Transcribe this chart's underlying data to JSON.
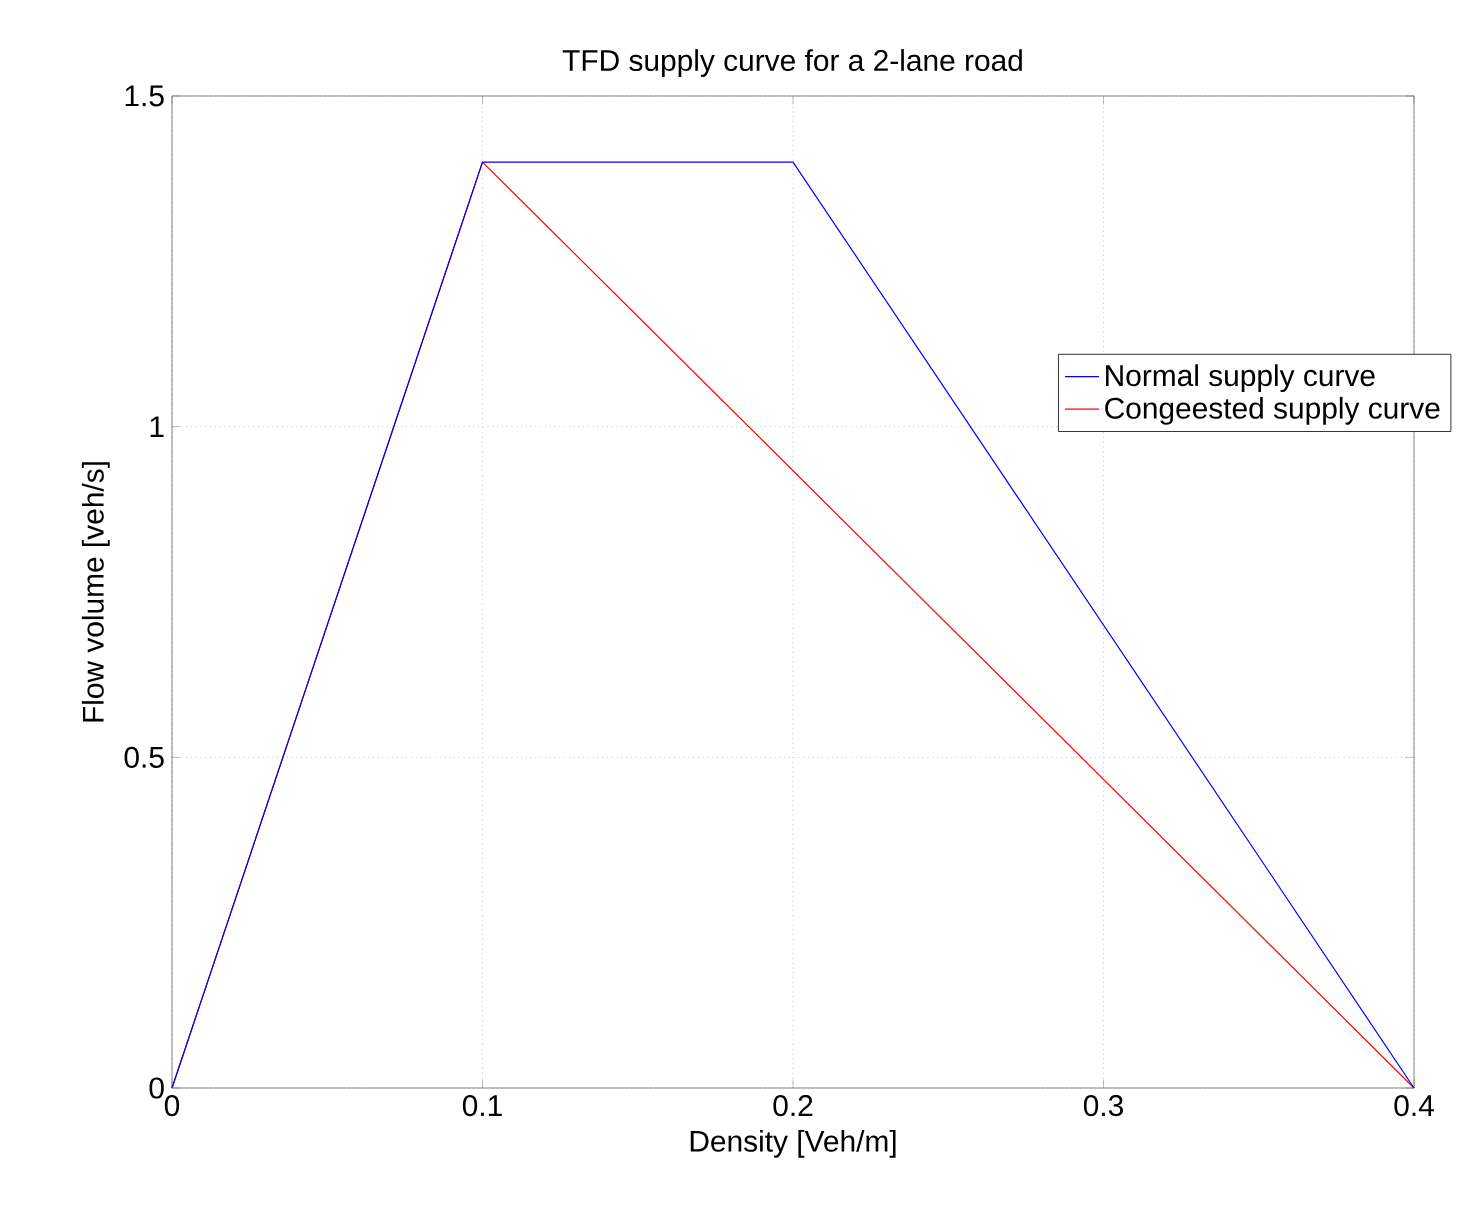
{
  "chart_data": {
    "type": "line",
    "title": "TFD supply curve for a 2-lane road",
    "xlabel": "Density [Veh/m]",
    "ylabel": "Flow volume [veh/s]",
    "series": [
      {
        "name": "Normal supply curve",
        "color": "#0000ff",
        "x": [
          0,
          0.1,
          0.2,
          0.4
        ],
        "values": [
          0,
          1.4,
          1.4,
          0
        ]
      },
      {
        "name": "Congeested supply curve",
        "color": "#ff0000",
        "x": [
          0,
          0.1,
          0.4
        ],
        "values": [
          0,
          1.4,
          0
        ]
      }
    ],
    "xlim": [
      0,
      0.4
    ],
    "ylim": [
      0,
      1.5
    ],
    "xticks": [
      0,
      0.1,
      0.2,
      0.3,
      0.4
    ],
    "yticks": [
      0,
      0.5,
      1,
      1.5
    ],
    "grid": true,
    "legend": "top right",
    "marker": "none",
    "line_style": "solid"
  }
}
